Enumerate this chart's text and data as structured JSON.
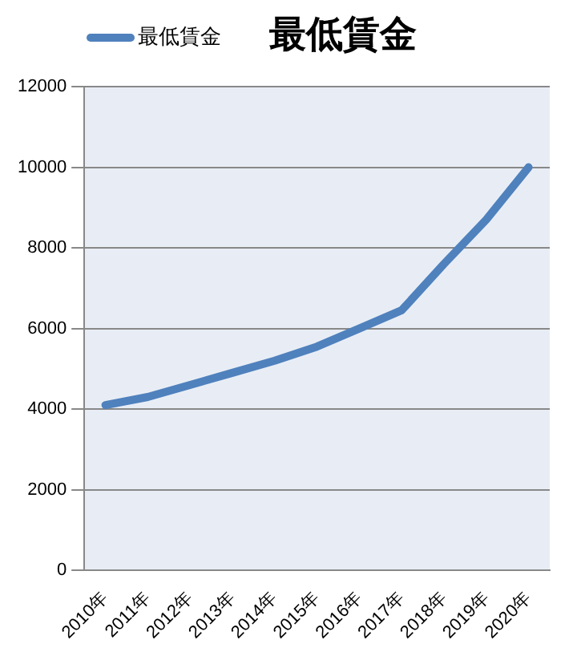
{
  "chart_data": {
    "type": "line",
    "title": "最低賃金",
    "categories": [
      "2010年",
      "2011年",
      "2012年",
      "2013年",
      "2014年",
      "2015年",
      "2016年",
      "2017年",
      "2018年",
      "2019年",
      "2020年"
    ],
    "series": [
      {
        "name": "最低賃金",
        "color": "#4f81bd",
        "values": [
          4100,
          4300,
          4600,
          4900,
          5200,
          5550,
          6000,
          6450,
          7600,
          8700,
          10000
        ]
      }
    ],
    "ylim": [
      0,
      12000
    ],
    "yticks": [
      0,
      2000,
      4000,
      6000,
      8000,
      10000,
      12000
    ],
    "grid": "y",
    "legend": "top left",
    "marker": "none",
    "line_style": "solid"
  }
}
